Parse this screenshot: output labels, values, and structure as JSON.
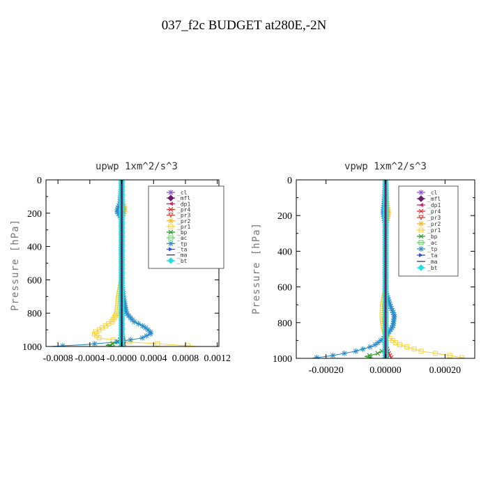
{
  "figure": {
    "title": "037_f2c  BUDGET at280E,-2N"
  },
  "chart_data": [
    {
      "type": "line",
      "title": "upwp   1xm^2/s^3",
      "ylabel": "Pressure [hPa]",
      "xlabel": "",
      "xlim": [
        -0.00095,
        0.00122
      ],
      "ylim": [
        1000,
        0
      ],
      "x_ticks": [
        {
          "v": -0.0008,
          "label": "-0.0008"
        },
        {
          "v": -0.0004,
          "label": "-0.0004"
        },
        {
          "v": 0,
          "label": "-0.0000"
        },
        {
          "v": 0.0004,
          "label": "0.0004"
        },
        {
          "v": 0.0008,
          "label": "0.0008"
        },
        {
          "v": 0.0012,
          "label": "0.0012"
        }
      ],
      "y_ticks": [
        {
          "v": 0,
          "label": "0"
        },
        {
          "v": 200,
          "label": "200"
        },
        {
          "v": 400,
          "label": "400"
        },
        {
          "v": 600,
          "label": "600"
        },
        {
          "v": 800,
          "label": "800"
        },
        {
          "v": 1000,
          "label": "1000"
        }
      ],
      "grid": false,
      "legend_position": "top-right",
      "series": [
        {
          "name": "_cl",
          "color": "#8a4fd0",
          "marker": "star",
          "points": [
            [
              0,
              0
            ],
            [
              0,
              1000
            ]
          ]
        },
        {
          "name": "_mfl",
          "color": "#6a1a6a",
          "marker": "diamond",
          "points": [
            [
              0,
              0
            ],
            [
              0,
              1000
            ]
          ]
        },
        {
          "name": "_dp1",
          "color": "#c0306a",
          "marker": "tri-left",
          "points": [
            [
              0,
              0
            ],
            [
              0,
              1000
            ]
          ]
        },
        {
          "name": "_pr4",
          "color": "#e03030",
          "marker": "x",
          "points": [
            [
              0,
              0
            ],
            [
              0,
              900
            ],
            [
              2e-05,
              960
            ],
            [
              3e-05,
              990
            ],
            [
              1e-05,
              1000
            ]
          ]
        },
        {
          "name": "_pr3",
          "color": "#e0403a",
          "marker": "tri-down",
          "points": [
            [
              0,
              0
            ],
            [
              0,
              1000
            ]
          ]
        },
        {
          "name": "_pr2",
          "color": "#f2b830",
          "marker": "star",
          "points": [
            [
              0,
              0
            ],
            [
              1e-05,
              140
            ],
            [
              4e-05,
              170
            ],
            [
              3e-05,
              200
            ],
            [
              0,
              230
            ],
            [
              0,
              600
            ]
          ]
        },
        {
          "name": "_pr1",
          "color": "#f7d23a",
          "marker": "square",
          "points": [
            [
              0,
              0
            ],
            [
              0,
              600
            ],
            [
              -2e-05,
              650
            ],
            [
              -4e-05,
              700
            ],
            [
              -5e-05,
              750
            ],
            [
              -6e-05,
              800
            ],
            [
              -0.00012,
              850
            ],
            [
              -0.00025,
              890
            ],
            [
              -0.00035,
              920
            ],
            [
              -0.00028,
              950
            ],
            [
              0.00015,
              975
            ],
            [
              0.00065,
              990
            ],
            [
              0.00095,
              1000
            ]
          ]
        },
        {
          "name": "_bp",
          "color": "#2a9a2a",
          "marker": "x",
          "points": [
            [
              0,
              0
            ],
            [
              0,
              950
            ],
            [
              -4e-05,
              970
            ],
            [
              -0.00012,
              985
            ],
            [
              -0.0002,
              993
            ],
            [
              -8e-05,
              1000
            ]
          ]
        },
        {
          "name": "_ac",
          "color": "#5ad65a",
          "marker": "square",
          "points": [
            [
              0,
              0
            ],
            [
              0,
              1000
            ]
          ]
        },
        {
          "name": "_tp",
          "color": "#2a8ac8",
          "marker": "star",
          "points": [
            [
              0,
              0
            ],
            [
              -2e-05,
              140
            ],
            [
              -5e-05,
              170
            ],
            [
              -6e-05,
              190
            ],
            [
              -3e-05,
              210
            ],
            [
              0,
              240
            ],
            [
              0,
              600
            ],
            [
              2e-05,
              700
            ],
            [
              6e-05,
              800
            ],
            [
              0.00015,
              850
            ],
            [
              0.00028,
              880
            ],
            [
              0.00038,
              920
            ],
            [
              0.00025,
              950
            ],
            [
              -0.0001,
              975
            ],
            [
              -0.0005,
              990
            ],
            [
              -0.0009,
              1000
            ]
          ]
        },
        {
          "name": "_ta",
          "color": "#3050d8",
          "marker": "tri-right",
          "points": [
            [
              0,
              0
            ],
            [
              0,
              1000
            ]
          ]
        },
        {
          "name": "_ma",
          "color": "#333366",
          "marker": "none",
          "points": [
            [
              0,
              0
            ],
            [
              0,
              1000
            ]
          ]
        },
        {
          "name": "_bt",
          "color": "#20e0e0",
          "marker": "diamond",
          "points": [
            [
              0,
              0
            ],
            [
              0,
              1000
            ]
          ]
        }
      ]
    },
    {
      "type": "line",
      "title": "vpwp   1xm^2/s^3",
      "ylabel": "Pressure [hPa]",
      "xlabel": "",
      "xlim": [
        -0.0003,
        0.0003
      ],
      "ylim": [
        1000,
        0
      ],
      "x_ticks": [
        {
          "v": -0.0002,
          "label": "-0.00020"
        },
        {
          "v": 0,
          "label": "0.00000"
        },
        {
          "v": 0.0002,
          "label": "0.00020"
        }
      ],
      "y_ticks": [
        {
          "v": 0,
          "label": "0"
        },
        {
          "v": 200,
          "label": "200"
        },
        {
          "v": 400,
          "label": "400"
        },
        {
          "v": 600,
          "label": "600"
        },
        {
          "v": 800,
          "label": "800"
        },
        {
          "v": 1000,
          "label": "1000"
        }
      ],
      "grid": false,
      "legend_position": "top-right",
      "series": [
        {
          "name": "_cl",
          "color": "#8a4fd0",
          "marker": "star",
          "points": [
            [
              0,
              0
            ],
            [
              0,
              1000
            ]
          ]
        },
        {
          "name": "_mfl",
          "color": "#6a1a6a",
          "marker": "diamond",
          "points": [
            [
              0,
              0
            ],
            [
              0,
              1000
            ]
          ]
        },
        {
          "name": "_dp1",
          "color": "#c0306a",
          "marker": "tri-left",
          "points": [
            [
              0,
              0
            ],
            [
              0,
              1000
            ]
          ]
        },
        {
          "name": "_pr4",
          "color": "#e03030",
          "marker": "x",
          "points": [
            [
              0,
              0
            ],
            [
              0,
              930
            ],
            [
              1e-05,
              970
            ],
            [
              2e-05,
              1000
            ]
          ]
        },
        {
          "name": "_pr3",
          "color": "#e0403a",
          "marker": "tri-down",
          "points": [
            [
              0,
              0
            ],
            [
              0,
              1000
            ]
          ]
        },
        {
          "name": "_pr2",
          "color": "#f2b830",
          "marker": "star",
          "points": [
            [
              0,
              0
            ],
            [
              5e-06,
              140
            ],
            [
              1e-05,
              180
            ],
            [
              5e-06,
              230
            ],
            [
              0,
              260
            ],
            [
              0,
              1000
            ]
          ]
        },
        {
          "name": "_pr1",
          "color": "#f7d23a",
          "marker": "square",
          "points": [
            [
              0,
              0
            ],
            [
              0,
              620
            ],
            [
              -5e-06,
              660
            ],
            [
              -1e-05,
              700
            ],
            [
              -1.2e-05,
              760
            ],
            [
              -8e-06,
              820
            ],
            [
              0,
              870
            ],
            [
              4e-05,
              920
            ],
            [
              0.00012,
              960
            ],
            [
              0.00022,
              985
            ],
            [
              0.00027,
              1000
            ]
          ]
        },
        {
          "name": "_bp",
          "color": "#2a9a2a",
          "marker": "x",
          "points": [
            [
              0,
              0
            ],
            [
              0,
              950
            ],
            [
              -3e-05,
              975
            ],
            [
              -7e-05,
              990
            ],
            [
              -4e-05,
              1000
            ]
          ]
        },
        {
          "name": "_ac",
          "color": "#5ad65a",
          "marker": "square",
          "points": [
            [
              0,
              0
            ],
            [
              0,
              1000
            ]
          ]
        },
        {
          "name": "_tp",
          "color": "#2a8ac8",
          "marker": "star",
          "points": [
            [
              0,
              0
            ],
            [
              -5e-06,
              140
            ],
            [
              -8e-06,
              180
            ],
            [
              -4e-06,
              220
            ],
            [
              0,
              260
            ],
            [
              0,
              620
            ],
            [
              1.5e-05,
              700
            ],
            [
              3e-05,
              760
            ],
            [
              2.5e-05,
              820
            ],
            [
              0,
              880
            ],
            [
              -4e-05,
              930
            ],
            [
              -0.0001,
              960
            ],
            [
              -0.00018,
              985
            ],
            [
              -0.00025,
              1000
            ]
          ]
        },
        {
          "name": "_ta",
          "color": "#3050d8",
          "marker": "tri-right",
          "points": [
            [
              0,
              0
            ],
            [
              0,
              1000
            ]
          ]
        },
        {
          "name": "_ma",
          "color": "#333366",
          "marker": "none",
          "points": [
            [
              0,
              0
            ],
            [
              0,
              1000
            ]
          ]
        },
        {
          "name": "_bt",
          "color": "#20e0e0",
          "marker": "diamond",
          "points": [
            [
              0,
              0
            ],
            [
              0,
              1000
            ]
          ]
        }
      ]
    }
  ]
}
